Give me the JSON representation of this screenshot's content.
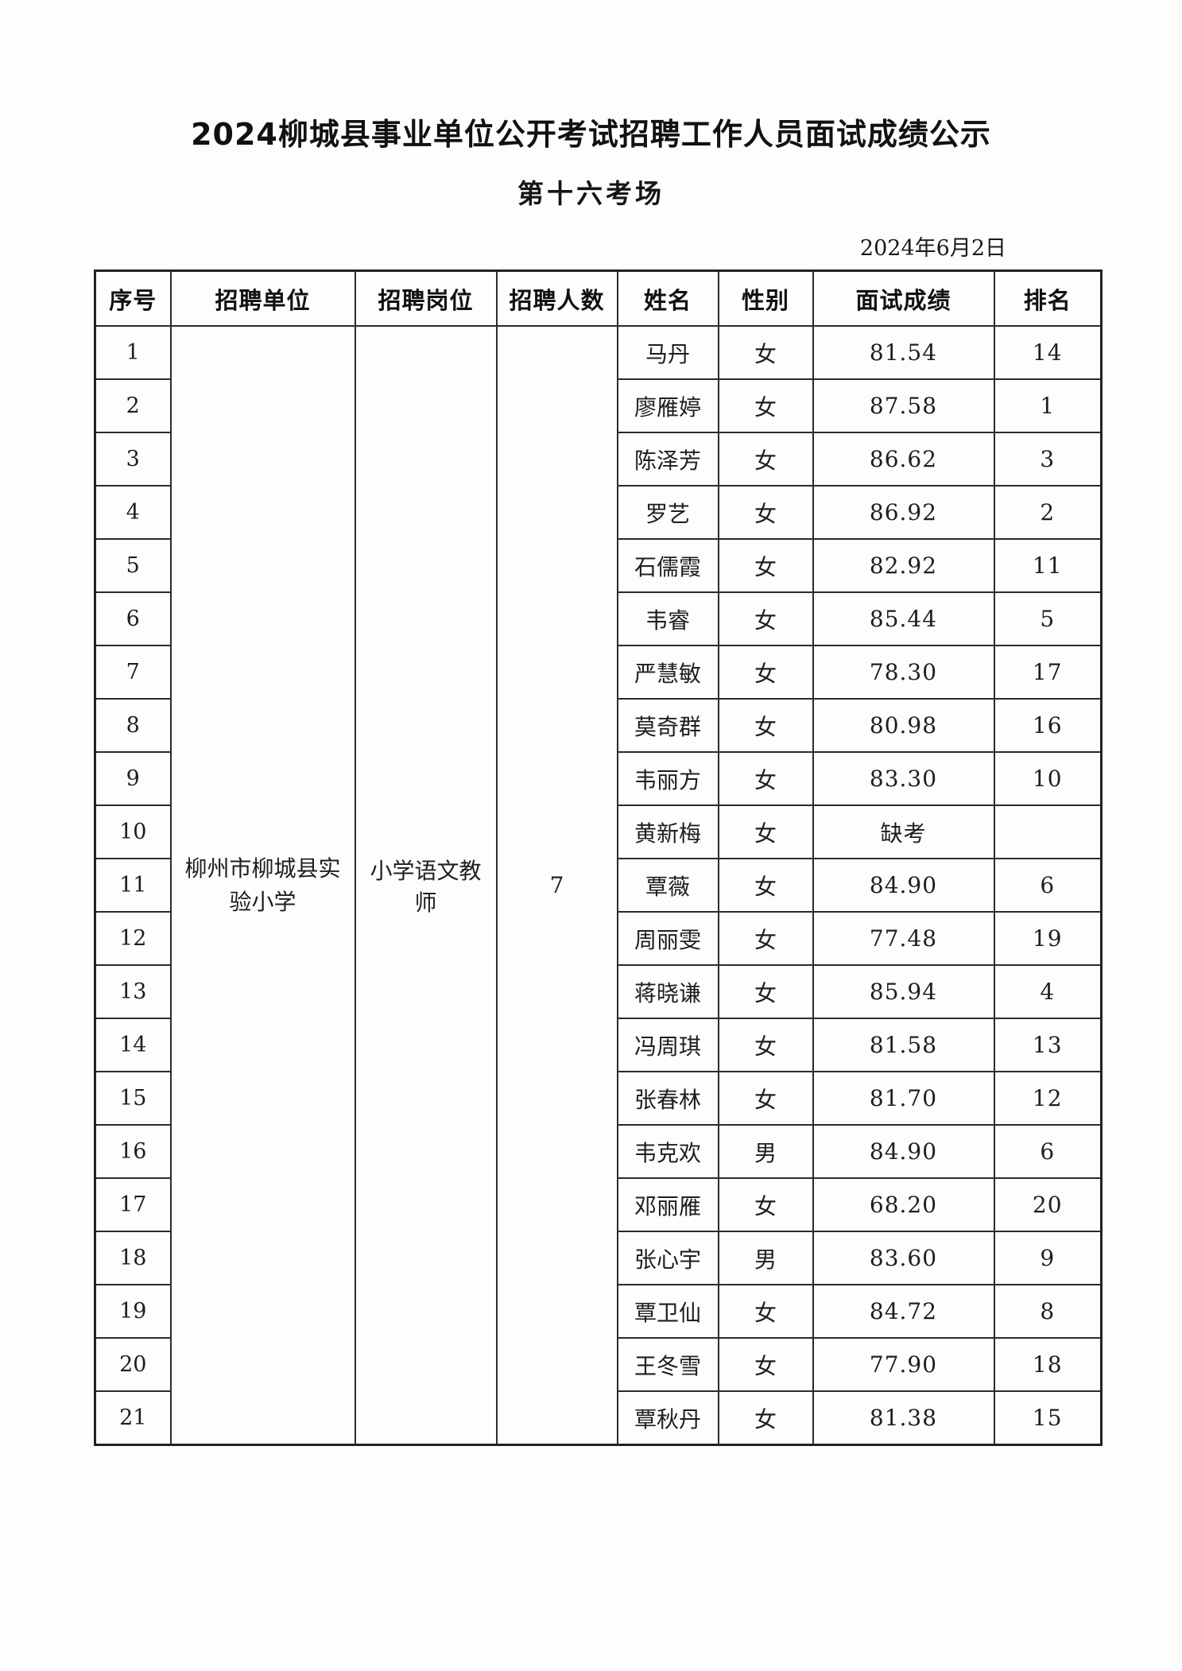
{
  "page": {
    "title": "2024柳城县事业单位公开考试招聘工作人员面试成绩公示",
    "subtitle": "第十六考场",
    "date": "2024年6月2日"
  },
  "table": {
    "columns": [
      "序号",
      "招聘单位",
      "招聘岗位",
      "招聘人数",
      "姓名",
      "性别",
      "面试成绩",
      "排名"
    ],
    "merged": {
      "unit": "柳州市柳城县实验小学",
      "position": "小学语文教师",
      "headcount": "7"
    },
    "rows": [
      {
        "no": "1",
        "name": "马丹",
        "gender": "女",
        "score": "81.54",
        "rank": "14"
      },
      {
        "no": "2",
        "name": "廖雁婷",
        "gender": "女",
        "score": "87.58",
        "rank": "1"
      },
      {
        "no": "3",
        "name": "陈泽芳",
        "gender": "女",
        "score": "86.62",
        "rank": "3"
      },
      {
        "no": "4",
        "name": "罗艺",
        "gender": "女",
        "score": "86.92",
        "rank": "2"
      },
      {
        "no": "5",
        "name": "石儒霞",
        "gender": "女",
        "score": "82.92",
        "rank": "11"
      },
      {
        "no": "6",
        "name": "韦睿",
        "gender": "女",
        "score": "85.44",
        "rank": "5"
      },
      {
        "no": "7",
        "name": "严慧敏",
        "gender": "女",
        "score": "78.30",
        "rank": "17"
      },
      {
        "no": "8",
        "name": "莫奇群",
        "gender": "女",
        "score": "80.98",
        "rank": "16"
      },
      {
        "no": "9",
        "name": "韦丽方",
        "gender": "女",
        "score": "83.30",
        "rank": "10"
      },
      {
        "no": "10",
        "name": "黄新梅",
        "gender": "女",
        "score": "缺考",
        "rank": ""
      },
      {
        "no": "11",
        "name": "覃薇",
        "gender": "女",
        "score": "84.90",
        "rank": "6"
      },
      {
        "no": "12",
        "name": "周丽雯",
        "gender": "女",
        "score": "77.48",
        "rank": "19"
      },
      {
        "no": "13",
        "name": "蒋晓谦",
        "gender": "女",
        "score": "85.94",
        "rank": "4"
      },
      {
        "no": "14",
        "name": "冯周琪",
        "gender": "女",
        "score": "81.58",
        "rank": "13"
      },
      {
        "no": "15",
        "name": "张春林",
        "gender": "女",
        "score": "81.70",
        "rank": "12"
      },
      {
        "no": "16",
        "name": "韦克欢",
        "gender": "男",
        "score": "84.90",
        "rank": "6"
      },
      {
        "no": "17",
        "name": "邓丽雁",
        "gender": "女",
        "score": "68.20",
        "rank": "20"
      },
      {
        "no": "18",
        "name": "张心宇",
        "gender": "男",
        "score": "83.60",
        "rank": "9"
      },
      {
        "no": "19",
        "name": "覃卫仙",
        "gender": "女",
        "score": "84.72",
        "rank": "8"
      },
      {
        "no": "20",
        "name": "王冬雪",
        "gender": "女",
        "score": "77.90",
        "rank": "18"
      },
      {
        "no": "21",
        "name": "覃秋丹",
        "gender": "女",
        "score": "81.38",
        "rank": "15"
      }
    ]
  }
}
